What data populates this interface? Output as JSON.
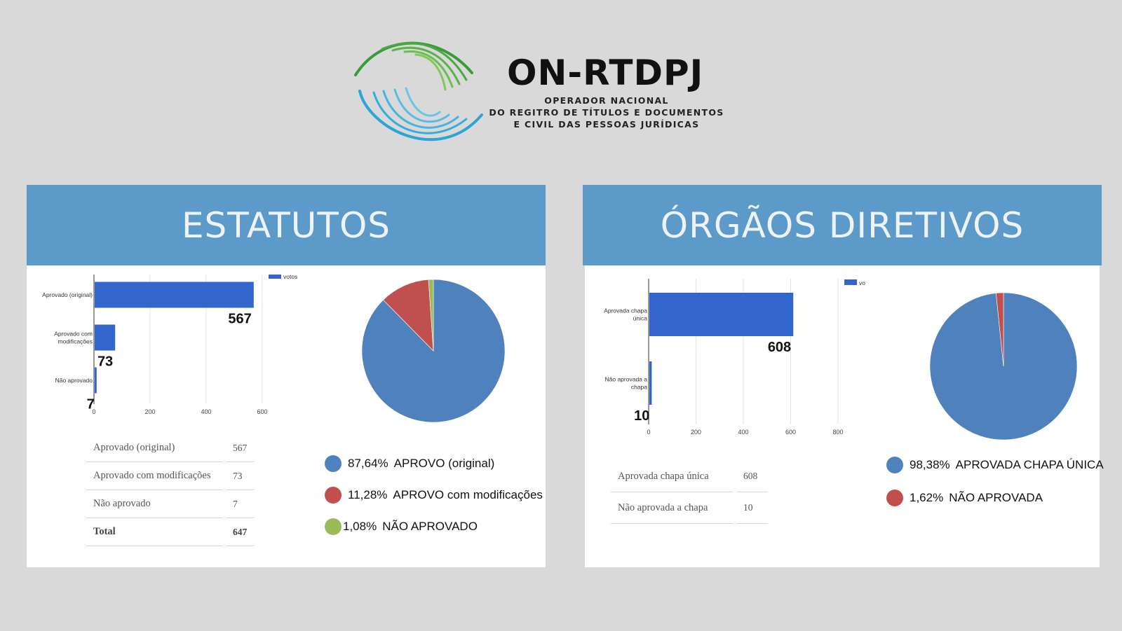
{
  "logo": {
    "name": "ON-RTDPJ",
    "subtitle_lines": [
      "OPERADOR NACIONAL",
      "DO REGITRO DE TÍTULOS E DOCUMENTOS",
      "E CIVIL DAS PESSOAS JURÍDICAS"
    ]
  },
  "colors": {
    "background": "#d9d9d9",
    "header": "#5b9ac9",
    "bar": "#3366cc",
    "pie_blue": "#4f81bd",
    "pie_red": "#c0504d",
    "pie_green": "#9bbb59",
    "logo_green": "#3a9b3a",
    "logo_blue": "#2aa5d8"
  },
  "panels": [
    {
      "title": "ESTATUTOS",
      "table": [
        {
          "label": "Aprovado (original)",
          "value": "567"
        },
        {
          "label": "Aprovado com modificações",
          "value": "73"
        },
        {
          "label": "Não aprovado",
          "value": "7"
        },
        {
          "label": "Total",
          "value": "647"
        }
      ],
      "legend": [
        {
          "pct": "87,64%",
          "label": "APROVO (original)",
          "color": "#4f81bd"
        },
        {
          "pct": "11,28%",
          "label": "APROVO com modificações",
          "color": "#c0504d"
        },
        {
          "pct": "1,08%",
          "label": "NÃO APROVADO",
          "color": "#9bbb59"
        }
      ]
    },
    {
      "title": "ÓRGÃOS DIRETIVOS",
      "table": [
        {
          "label": "Aprovada chapa única",
          "value": "608"
        },
        {
          "label": "Não aprovada a chapa",
          "value": "10"
        }
      ],
      "legend": [
        {
          "pct": "98,38%",
          "label": "APROVADA CHAPA ÚNICA",
          "color": "#4f81bd"
        },
        {
          "pct": "1,62%",
          "label": "NÃO APROVADA",
          "color": "#c0504d"
        }
      ]
    }
  ],
  "chart_data": [
    {
      "type": "bar",
      "orientation": "horizontal",
      "categories": [
        "Aprovado (original)",
        "Aprovado com modificações",
        "Não aprovado"
      ],
      "category_lines": [
        [
          "Aprovado (original)"
        ],
        [
          "Aprovado com",
          "modificações"
        ],
        [
          "Não aprovado"
        ]
      ],
      "series": [
        {
          "name": "votos",
          "values": [
            567,
            73,
            7
          ]
        }
      ],
      "data_labels": [
        "567",
        "73",
        "7"
      ],
      "xlim": [
        0,
        600
      ],
      "xticks": [
        0,
        200,
        400,
        600
      ],
      "grid": true,
      "legend": "top-right"
    },
    {
      "type": "pie",
      "labels": [
        "APROVO (original)",
        "APROVO com modificações",
        "NÃO APROVADO"
      ],
      "values": [
        567,
        73,
        7
      ],
      "colors": [
        "#4f81bd",
        "#c0504d",
        "#9bbb59"
      ]
    },
    {
      "type": "bar",
      "orientation": "horizontal",
      "categories": [
        "Aprovada chapa única",
        "Não aprovada a chapa"
      ],
      "category_lines": [
        [
          "Aprovada chapa",
          "única"
        ],
        [
          "Não aprovada a",
          "chapa"
        ]
      ],
      "series": [
        {
          "name": "votos",
          "values": [
            608,
            10
          ]
        }
      ],
      "data_labels": [
        "608",
        "10"
      ],
      "xlim": [
        0,
        800
      ],
      "xticks": [
        0,
        200,
        400,
        600,
        800
      ],
      "grid": true,
      "legend": "top-right"
    },
    {
      "type": "pie",
      "labels": [
        "APROVADA CHAPA ÚNICA",
        "NÃO APROVADA"
      ],
      "values": [
        608,
        10
      ],
      "colors": [
        "#4f81bd",
        "#c0504d"
      ]
    }
  ]
}
